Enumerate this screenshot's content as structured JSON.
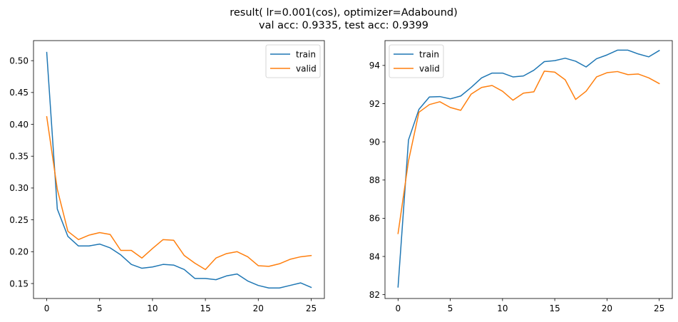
{
  "figure": {
    "title_line1": "result( lr=0.001(cos), optimizer=Adabound)",
    "title_line2": "val acc: 0.9335, test acc: 0.9399"
  },
  "colors": {
    "train": "#1f77b4",
    "valid": "#ff7f0e",
    "axis": "#000000"
  },
  "chart_data": [
    {
      "type": "line",
      "title": "",
      "xlabel": "",
      "ylabel": "",
      "xlim": [
        -1.25,
        26.25
      ],
      "ylim": [
        0.1265,
        0.5315
      ],
      "xticks": [
        0,
        5,
        10,
        15,
        20,
        25
      ],
      "yticks": [
        0.15,
        0.2,
        0.25,
        0.3,
        0.35,
        0.4,
        0.45,
        0.5
      ],
      "ytick_labels": [
        "0.15",
        "0.20",
        "0.25",
        "0.30",
        "0.35",
        "0.40",
        "0.45",
        "0.50"
      ],
      "legend_position": "top-right",
      "grid": false,
      "x": [
        0,
        1,
        2,
        3,
        4,
        5,
        6,
        7,
        8,
        9,
        10,
        11,
        12,
        13,
        14,
        15,
        16,
        17,
        18,
        19,
        20,
        21,
        22,
        23,
        24,
        25
      ],
      "series": [
        {
          "name": "train",
          "values": [
            0.513,
            0.267,
            0.224,
            0.209,
            0.209,
            0.212,
            0.206,
            0.195,
            0.18,
            0.174,
            0.176,
            0.18,
            0.179,
            0.172,
            0.158,
            0.158,
            0.156,
            0.162,
            0.165,
            0.154,
            0.147,
            0.143,
            0.143,
            0.147,
            0.151,
            0.144
          ]
        },
        {
          "name": "valid",
          "values": [
            0.412,
            0.298,
            0.232,
            0.219,
            0.226,
            0.23,
            0.227,
            0.202,
            0.202,
            0.19,
            0.205,
            0.219,
            0.218,
            0.194,
            0.182,
            0.172,
            0.19,
            0.197,
            0.2,
            0.192,
            0.178,
            0.177,
            0.181,
            0.188,
            0.192,
            0.194
          ]
        }
      ]
    },
    {
      "type": "line",
      "title": "",
      "xlabel": "",
      "ylabel": "",
      "xlim": [
        -1.25,
        26.25
      ],
      "ylim": [
        81.8,
        95.3
      ],
      "xticks": [
        0,
        5,
        10,
        15,
        20,
        25
      ],
      "yticks": [
        82,
        84,
        86,
        88,
        90,
        92,
        94
      ],
      "ytick_labels": [
        "82",
        "84",
        "86",
        "88",
        "90",
        "92",
        "94"
      ],
      "legend_position": "top-left",
      "grid": false,
      "x": [
        0,
        1,
        2,
        3,
        4,
        5,
        6,
        7,
        8,
        9,
        10,
        11,
        12,
        13,
        14,
        15,
        16,
        17,
        18,
        19,
        20,
        21,
        22,
        23,
        24,
        25
      ],
      "series": [
        {
          "name": "train",
          "values": [
            82.4,
            90.1,
            91.7,
            92.35,
            92.37,
            92.25,
            92.4,
            92.85,
            93.35,
            93.6,
            93.6,
            93.4,
            93.45,
            93.75,
            94.2,
            94.25,
            94.38,
            94.22,
            93.92,
            94.35,
            94.55,
            94.8,
            94.8,
            94.6,
            94.45,
            94.78
          ]
        },
        {
          "name": "valid",
          "values": [
            85.2,
            89.0,
            91.55,
            91.95,
            92.1,
            91.8,
            91.65,
            92.5,
            92.85,
            92.95,
            92.65,
            92.18,
            92.55,
            92.62,
            93.7,
            93.65,
            93.25,
            92.22,
            92.65,
            93.4,
            93.62,
            93.68,
            93.52,
            93.55,
            93.35,
            93.05
          ]
        }
      ]
    }
  ]
}
